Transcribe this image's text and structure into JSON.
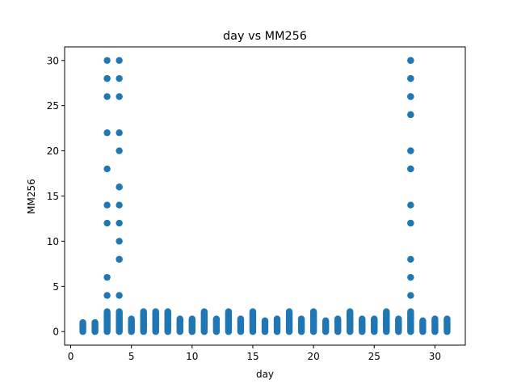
{
  "chart_data": {
    "type": "scatter",
    "title": "day vs MM256",
    "xlabel": "day",
    "ylabel": "MM256",
    "xlim": [
      -0.5,
      32.5
    ],
    "ylim": [
      -1.5,
      31.5
    ],
    "xticks": [
      0,
      5,
      10,
      15,
      20,
      25,
      30
    ],
    "yticks": [
      0,
      5,
      10,
      15,
      20,
      25,
      30
    ],
    "grid": false,
    "point_color": "#1f77b4",
    "baseline_max_by_day": {
      "1": 1.0,
      "2": 1.0,
      "3": 2.2,
      "4": 2.2,
      "5": 1.4,
      "6": 2.2,
      "7": 2.2,
      "8": 2.2,
      "9": 1.4,
      "10": 1.4,
      "11": 2.2,
      "12": 1.4,
      "13": 2.2,
      "14": 1.4,
      "15": 2.2,
      "16": 1.2,
      "17": 1.4,
      "18": 2.2,
      "19": 1.4,
      "20": 2.2,
      "21": 1.2,
      "22": 1.4,
      "23": 2.2,
      "24": 1.4,
      "25": 1.4,
      "26": 2.2,
      "27": 1.4,
      "28": 2.2,
      "29": 1.2,
      "30": 1.4,
      "31": 1.4
    },
    "outliers": [
      {
        "x": 3,
        "y": [
          30,
          28,
          28,
          26,
          22,
          18,
          14,
          12,
          6,
          4
        ]
      },
      {
        "x": 4,
        "y": [
          30,
          28,
          26,
          22,
          20,
          16,
          16,
          14,
          12,
          10,
          8,
          8,
          4
        ]
      },
      {
        "x": 28,
        "y": [
          30,
          30,
          28,
          28,
          26,
          26,
          24,
          24,
          20,
          20,
          18,
          18,
          14,
          12,
          12,
          8,
          6,
          4
        ]
      }
    ]
  }
}
